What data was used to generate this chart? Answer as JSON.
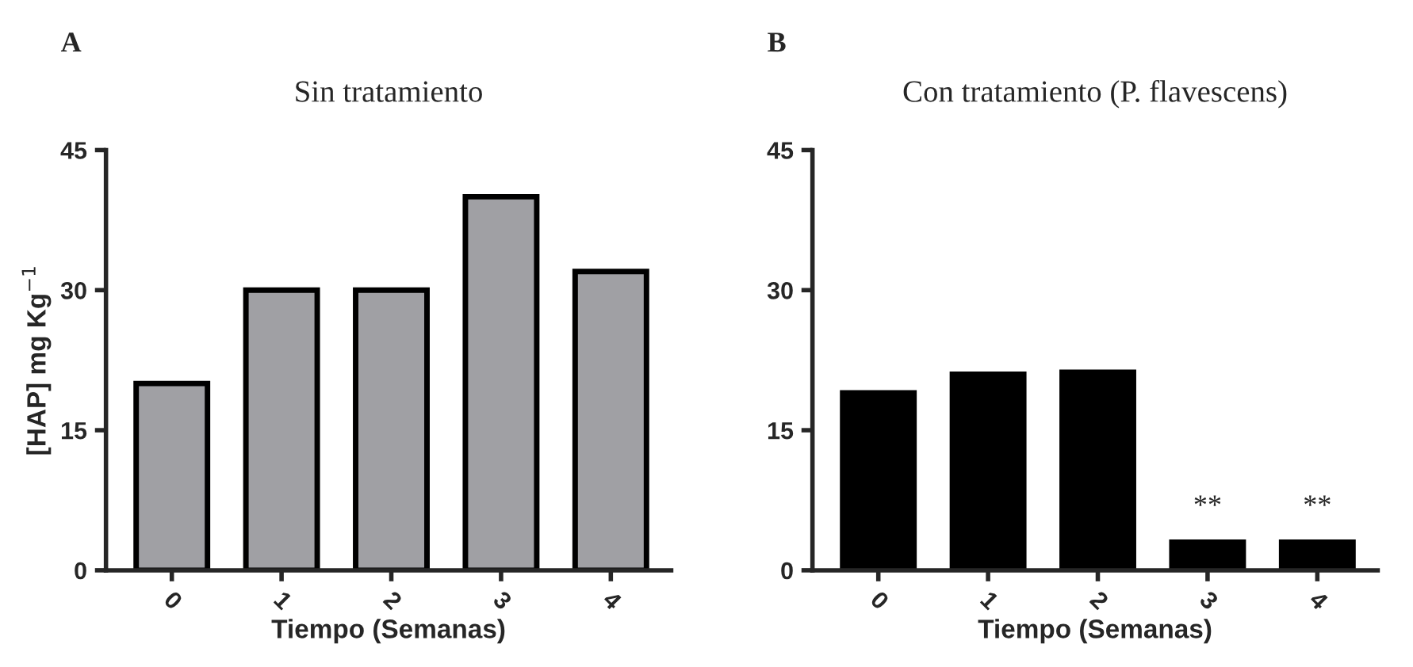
{
  "chart_data": [
    {
      "type": "bar",
      "title": "Sin tratamiento",
      "xlabel": "Tiempo (Semanas)",
      "ylabel": "[HAP] mg Kg$^{−1}$",
      "categories": [
        "0",
        "1",
        "2",
        "3",
        "4"
      ],
      "values": [
        20,
        30,
        30,
        40,
        32
      ],
      "color": "#a0a0a4",
      "ylim": [
        0,
        45
      ],
      "yticks": [
        0,
        15,
        30,
        45
      ],
      "grid": false,
      "annotations": [
        "A"
      ]
    },
    {
      "type": "bar",
      "title": "Con tratamiento (P. flavescens)",
      "xlabel": "Tiempo (Semanas)",
      "categories": [
        "0",
        "1",
        "2",
        "3",
        "4"
      ],
      "values": [
        19,
        21,
        21.2,
        3,
        3
      ],
      "color": "#000000",
      "ylim": [
        0,
        45
      ],
      "yticks": [
        0,
        15,
        30,
        45
      ],
      "grid": false,
      "annotations": [
        "B",
        {
          "text": "**",
          "x": "3",
          "y": 3
        },
        {
          "text": "**",
          "x": "4",
          "y": 3
        }
      ]
    }
  ]
}
